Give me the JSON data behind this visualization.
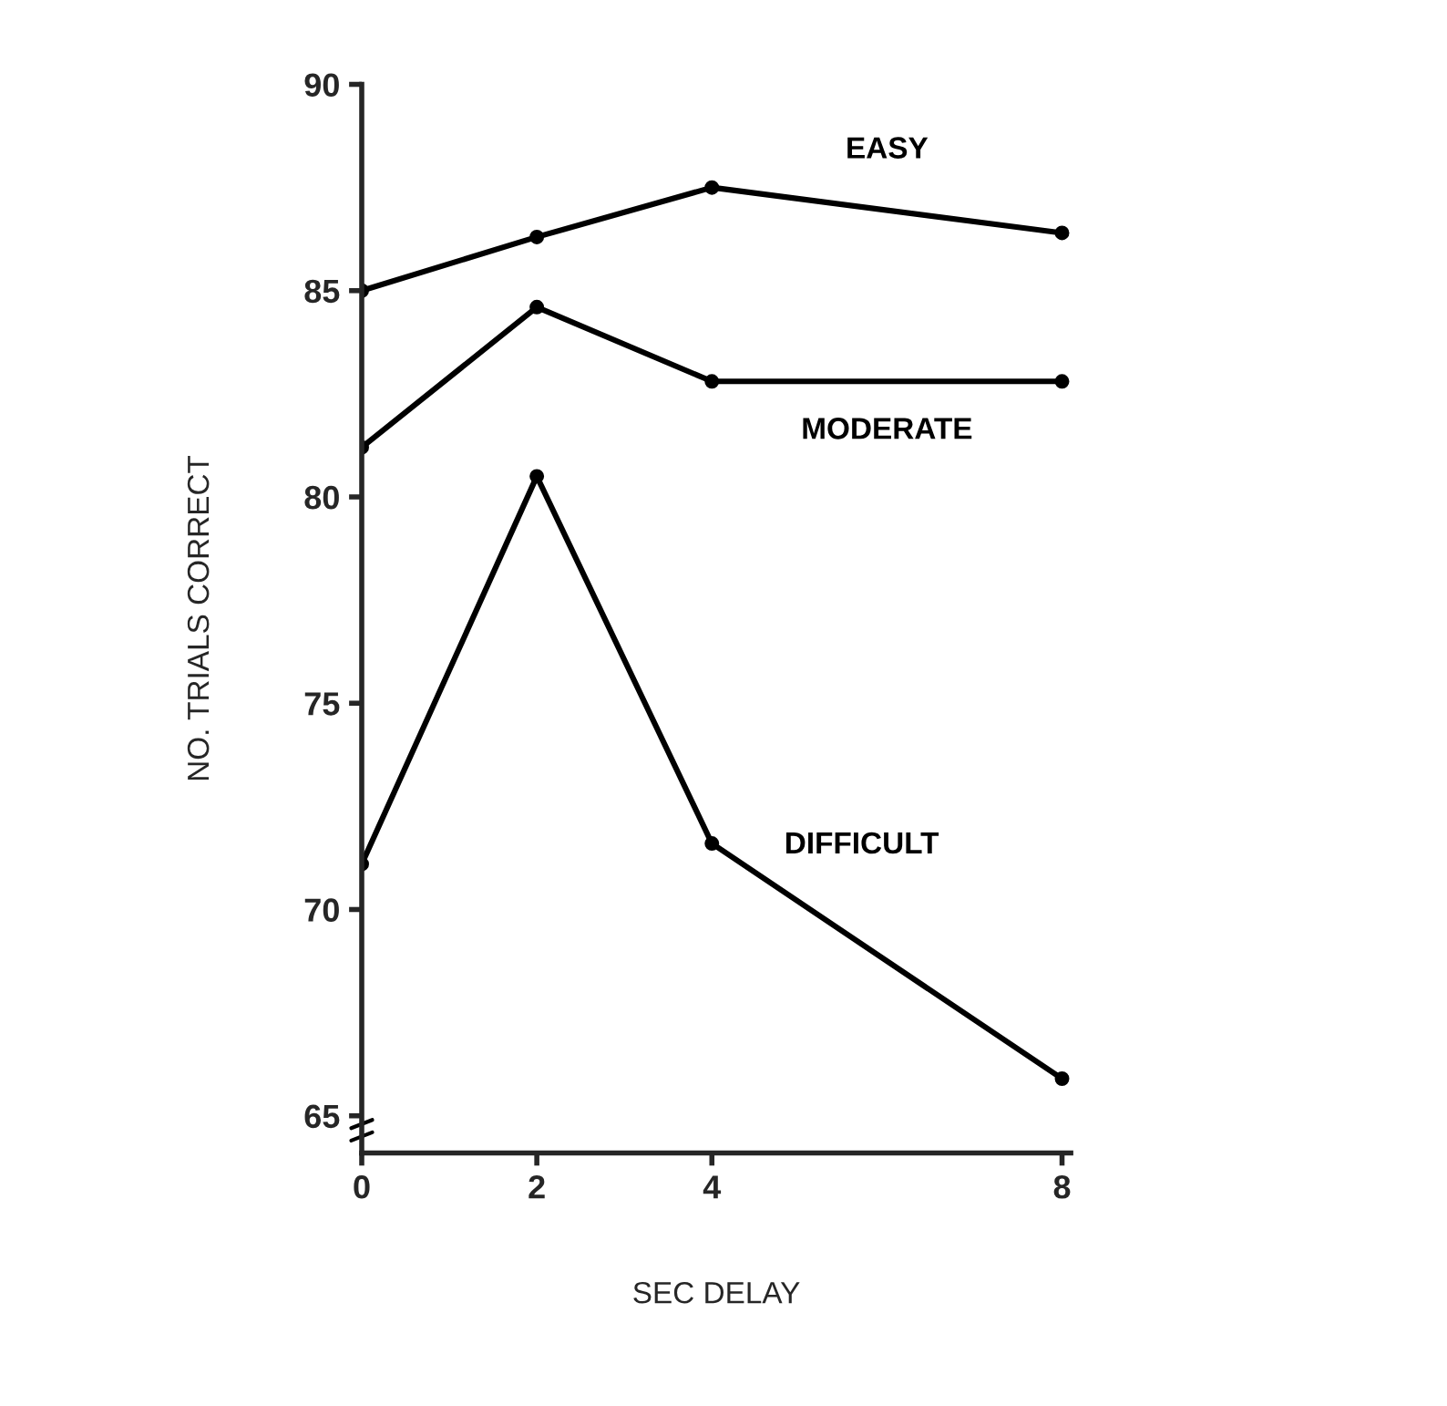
{
  "chart_data": {
    "type": "line",
    "xlabel": "SEC DELAY",
    "ylabel": "NO. TRIALS CORRECT",
    "x": [
      0,
      2,
      4,
      8
    ],
    "series": [
      {
        "name": "EASY",
        "color": "#000000",
        "values": [
          85.0,
          86.3,
          87.5,
          86.4
        ]
      },
      {
        "name": "MODERATE",
        "color": "#000000",
        "values": [
          81.2,
          84.6,
          82.8,
          82.8
        ]
      },
      {
        "name": "DIFFICULT",
        "color": "#000000",
        "values": [
          71.1,
          80.5,
          71.6,
          65.9
        ]
      }
    ],
    "xlim": [
      0,
      8.1
    ],
    "ylim": [
      64.1,
      90
    ],
    "xticks": [
      0,
      2,
      4,
      8
    ],
    "yticks": [
      65,
      70,
      75,
      80,
      85,
      90
    ],
    "marker": "circle",
    "line_style": "solid",
    "grid": false
  }
}
